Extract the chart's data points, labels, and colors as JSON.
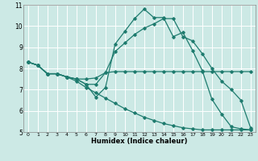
{
  "xlabel": "Humidex (Indice chaleur)",
  "xlim": [
    -0.5,
    23.5
  ],
  "ylim": [
    5,
    11
  ],
  "yticks": [
    5,
    6,
    7,
    8,
    9,
    10,
    11
  ],
  "xticks": [
    0,
    1,
    2,
    3,
    4,
    5,
    6,
    7,
    8,
    9,
    10,
    11,
    12,
    13,
    14,
    15,
    16,
    17,
    18,
    19,
    20,
    21,
    22,
    23
  ],
  "bg_color": "#cce9e5",
  "line_color": "#1e7b6e",
  "grid_color": "#ffffff",
  "line1_x": [
    0,
    1,
    2,
    3,
    4,
    5,
    6,
    7,
    8,
    9,
    10,
    11,
    12,
    13,
    14,
    15,
    16,
    17,
    18,
    19,
    20,
    21,
    22,
    23
  ],
  "line1_y": [
    8.3,
    8.15,
    7.75,
    7.75,
    7.6,
    7.5,
    7.25,
    6.65,
    7.1,
    9.15,
    9.75,
    10.35,
    10.8,
    10.4,
    10.4,
    9.5,
    9.7,
    8.85,
    7.9,
    6.55,
    5.85,
    5.25,
    5.15,
    5.1
  ],
  "line2_x": [
    0,
    1,
    2,
    3,
    4,
    5,
    6,
    7,
    8,
    9,
    10,
    11,
    12,
    13,
    14,
    15,
    16,
    17,
    18,
    19,
    20,
    21,
    22,
    23
  ],
  "line2_y": [
    8.3,
    8.15,
    7.75,
    7.75,
    7.6,
    7.5,
    7.25,
    7.25,
    7.8,
    8.8,
    9.2,
    9.6,
    9.9,
    10.1,
    10.35,
    10.35,
    9.5,
    9.3,
    8.7,
    8.0,
    7.4,
    7.0,
    6.5,
    5.2
  ],
  "line3_x": [
    0,
    1,
    2,
    3,
    4,
    5,
    6,
    7,
    8,
    9,
    10,
    11,
    12,
    13,
    14,
    15,
    16,
    17,
    18,
    19,
    20,
    21,
    22,
    23
  ],
  "line3_y": [
    8.3,
    8.15,
    7.75,
    7.75,
    7.6,
    7.5,
    7.5,
    7.55,
    7.8,
    7.85,
    7.85,
    7.85,
    7.85,
    7.85,
    7.85,
    7.85,
    7.85,
    7.85,
    7.85,
    7.85,
    7.85,
    7.85,
    7.85,
    7.85
  ],
  "line4_x": [
    0,
    1,
    2,
    3,
    4,
    5,
    6,
    7,
    8,
    9,
    10,
    11,
    12,
    13,
    14,
    15,
    16,
    17,
    18,
    19,
    20,
    21,
    22,
    23
  ],
  "line4_y": [
    8.3,
    8.15,
    7.75,
    7.75,
    7.6,
    7.4,
    7.1,
    6.85,
    6.6,
    6.35,
    6.1,
    5.9,
    5.7,
    5.55,
    5.4,
    5.3,
    5.2,
    5.15,
    5.1,
    5.1,
    5.1,
    5.1,
    5.1,
    5.1
  ]
}
